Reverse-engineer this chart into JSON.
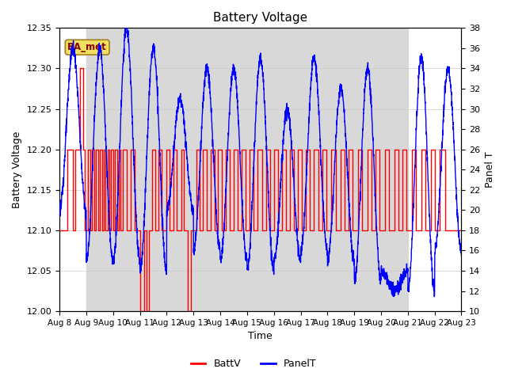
{
  "title": "Battery Voltage",
  "xlabel": "Time",
  "ylabel_left": "Battery Voltage",
  "ylabel_right": "Panel T",
  "ylim_left": [
    12.0,
    12.35
  ],
  "ylim_right": [
    10,
    38
  ],
  "x_tick_labels": [
    "Aug 8",
    "Aug 9",
    "Aug 10",
    "Aug 11",
    "Aug 12",
    "Aug 13",
    "Aug 14",
    "Aug 15",
    "Aug 16",
    "Aug 17",
    "Aug 18",
    "Aug 19",
    "Aug 20",
    "Aug 21",
    "Aug 22",
    "Aug 23"
  ],
  "shade_color": "#d8d8d8",
  "batt_color": "red",
  "panel_color": "blue",
  "ba_met_label": "BA_met",
  "background_color": "#ffffff",
  "panel_seed": 123,
  "batt_seed": 42
}
